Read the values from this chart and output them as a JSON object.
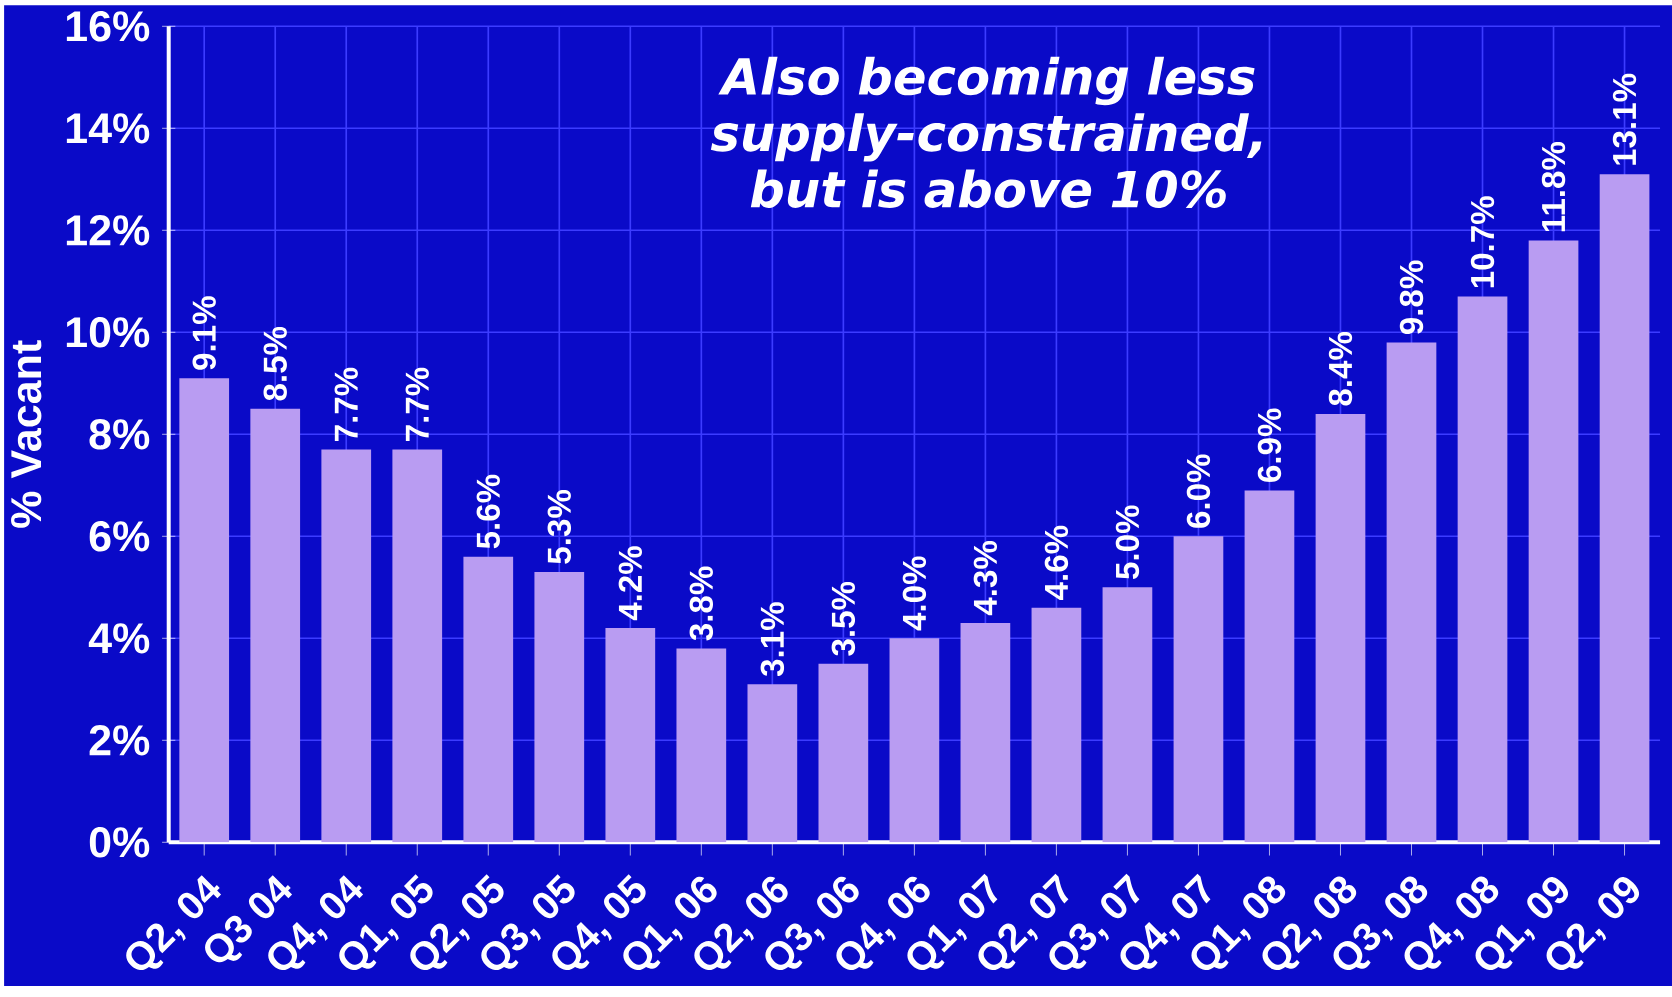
{
  "chart_data": {
    "type": "bar",
    "ylabel": "% Vacant",
    "annotations": [
      "Also becoming less supply-constrained, but is above 10%"
    ],
    "categories": [
      "Q2, 04",
      "Q3 04",
      "Q4, 04",
      "Q1, 05",
      "Q2, 05",
      "Q3, 05",
      "Q4, 05",
      "Q1, 06",
      "Q2, 06",
      "Q3, 06",
      "Q4, 06",
      "Q1, 07",
      "Q2, 07",
      "Q3, 07",
      "Q4, 07",
      "Q1, 08",
      "Q2, 08",
      "Q3, 08",
      "Q4, 08",
      "Q1, 09",
      "Q2, 09"
    ],
    "values": [
      9.1,
      8.5,
      7.7,
      7.7,
      5.6,
      5.3,
      4.2,
      3.8,
      3.1,
      3.5,
      4.0,
      4.3,
      4.6,
      5.0,
      6.0,
      6.9,
      8.4,
      9.8,
      10.7,
      11.8,
      13.1
    ],
    "value_labels": [
      "9.1%",
      "8.5%",
      "7.7%",
      "7.7%",
      "5.6%",
      "5.3%",
      "4.2%",
      "3.8%",
      "3.1%",
      "3.5%",
      "4.0%",
      "4.3%",
      "4.6%",
      "5.0%",
      "6.0%",
      "6.9%",
      "8.4%",
      "9.8%",
      "10.7%",
      "11.8%",
      "13.1%"
    ],
    "color": "#b99cf2",
    "ylim": [
      0,
      16
    ],
    "yticks": [
      {
        "value": 0,
        "label": "0%"
      },
      {
        "value": 2,
        "label": "2%"
      },
      {
        "value": 4,
        "label": "4%"
      },
      {
        "value": 6,
        "label": "6%"
      },
      {
        "value": 8,
        "label": "8%"
      },
      {
        "value": 10,
        "label": "10%"
      },
      {
        "value": 12,
        "label": "12%"
      },
      {
        "value": 14,
        "label": "14%"
      },
      {
        "value": 16,
        "label": "16%"
      }
    ],
    "grid": true
  }
}
